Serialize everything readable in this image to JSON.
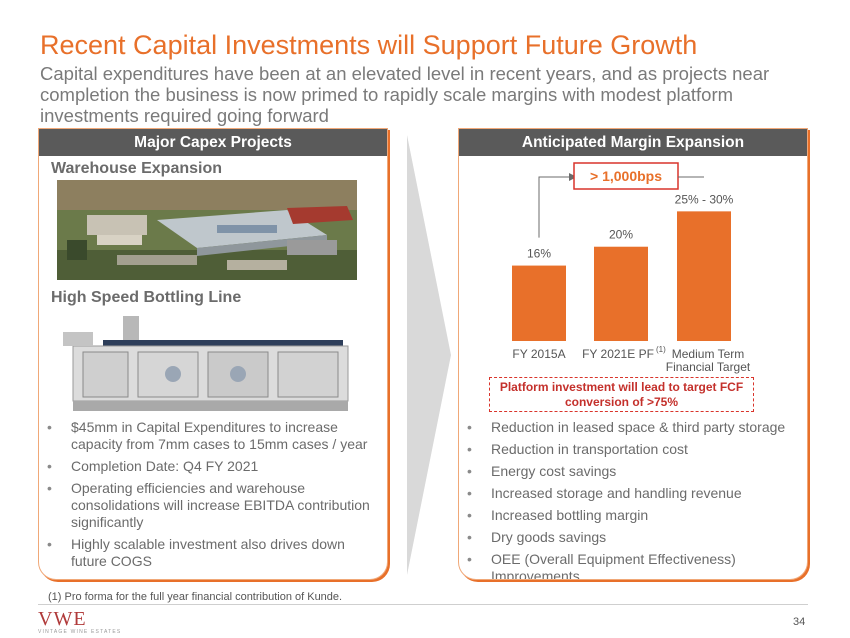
{
  "title": "Recent Capital Investments will Support Future Growth",
  "subtitle": "Capital expenditures have been at an elevated level in recent years, and as projects near completion the business is now primed to rapidly scale margins with modest platform investments required going forward",
  "left_panel": {
    "header": "Major Capex Projects",
    "section1": "Warehouse Expansion",
    "section2": "High Speed Bottling Line",
    "bullets": [
      "$45mm in Capital Expenditures to increase capacity from 7mm cases to 15mm cases / year",
      "Completion Date: Q4 FY 2021",
      "Operating efficiencies and warehouse consolidations will increase EBITDA contribution significantly",
      "Highly scalable investment also drives down future COGS"
    ]
  },
  "right_panel": {
    "header": "Anticipated Margin Expansion",
    "callout": "> 1,000bps",
    "platform_note": "Platform investment will lead to target FCF conversion of >75%",
    "bullets": [
      "Reduction in leased space & third party storage",
      "Reduction in transportation cost",
      "Energy cost savings",
      "Increased storage and handling revenue",
      "Increased bottling margin",
      "Dry goods savings",
      "OEE (Overall Equipment Effectiveness) Improvements"
    ]
  },
  "chart_data": {
    "type": "bar",
    "categories": [
      "FY 2015A",
      "FY 2021E PF",
      "Medium Term Financial Target"
    ],
    "category_labels": [
      "FY 2015A",
      "FY 2021E PF",
      "Medium Term",
      "Financial Target"
    ],
    "category_superscripts": [
      "",
      "(1)",
      ""
    ],
    "values": [
      16,
      20,
      27.5
    ],
    "data_labels": [
      "16%",
      "20%",
      "25% - 30%"
    ],
    "title": "",
    "xlabel": "",
    "ylabel": "",
    "ylim": [
      0,
      35
    ],
    "grid": false,
    "color": "#e8702a"
  },
  "footnote": "(1) Pro forma for the full year financial contribution of Kunde.",
  "logo": {
    "text": "VWE",
    "sub": "VINTAGE WINE ESTATES"
  },
  "page_number": "34",
  "colors": {
    "accent": "#e8702a",
    "header_bg": "#5a5a5a",
    "note_red": "#c4302b"
  }
}
